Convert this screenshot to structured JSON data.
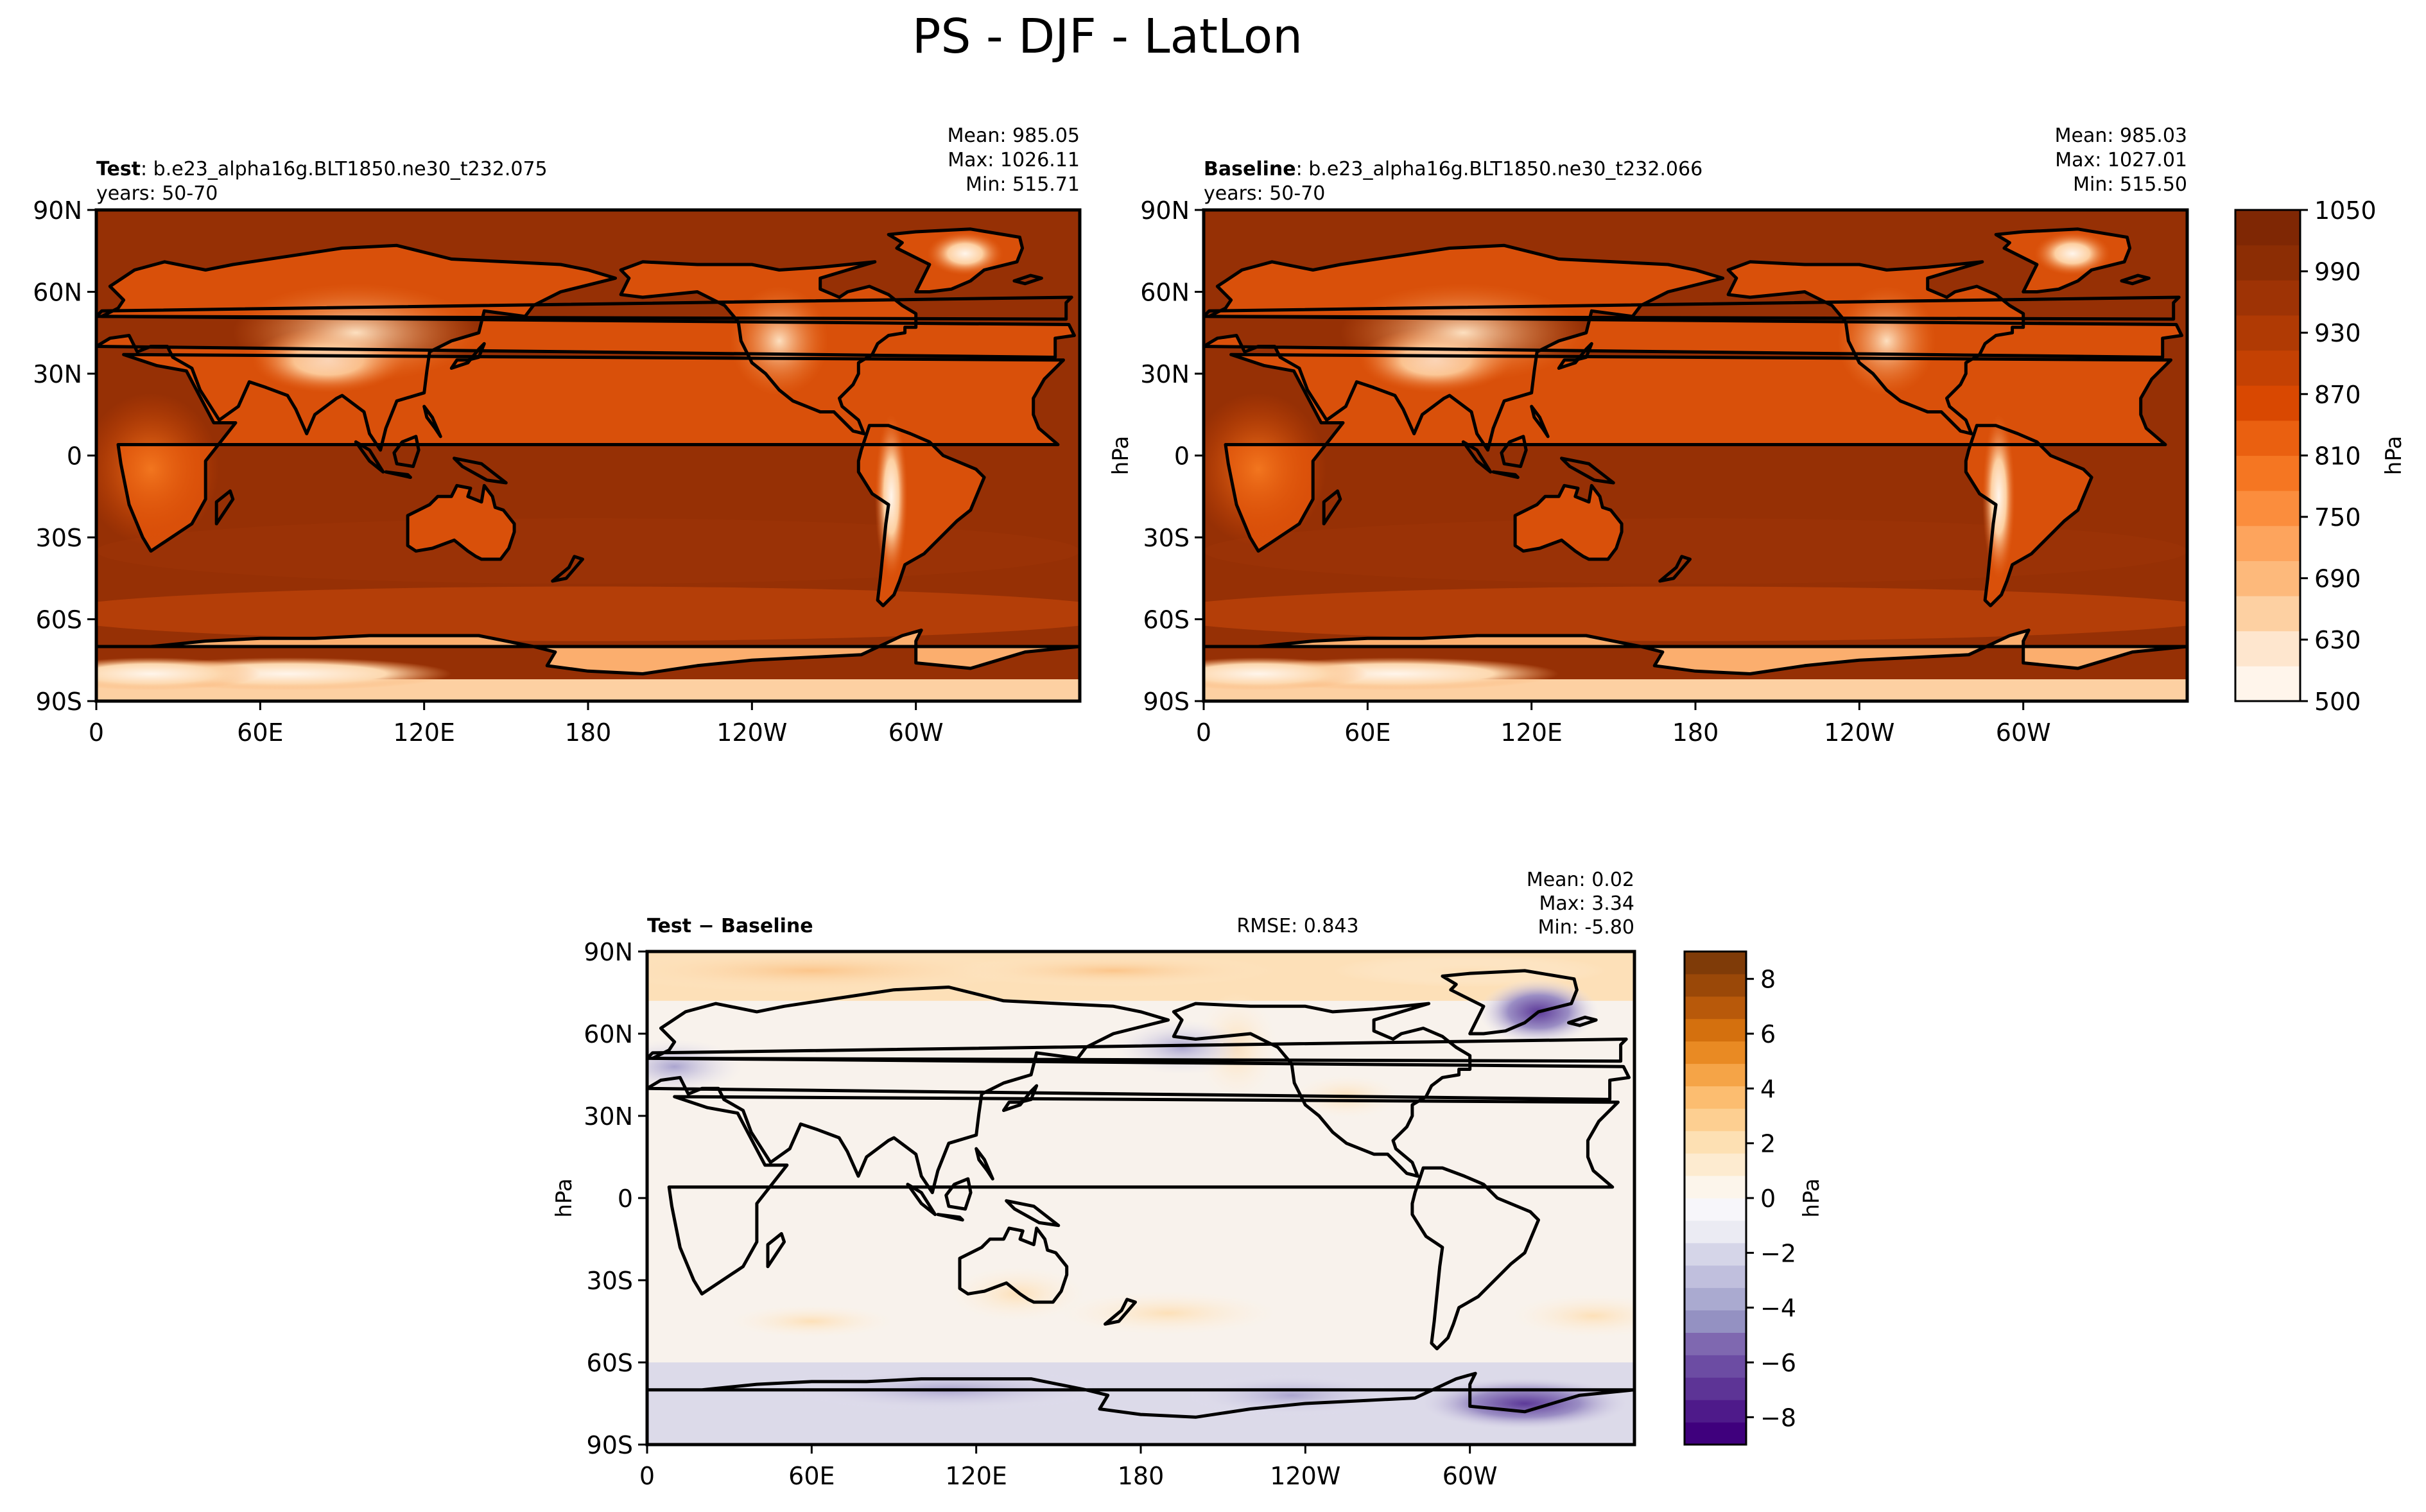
{
  "figure": {
    "title": "PS - DJF - LatLon"
  },
  "panels": [
    {
      "id": "test",
      "label_bold": "Test",
      "label_rest": ": b.e23_alpha16g.BLT1850.ne30_t232.075",
      "years": "years: 50-70",
      "stats": [
        "Mean: 985.05",
        "Max: 1026.11",
        "Min: 515.71"
      ],
      "ylabel": ""
    },
    {
      "id": "baseline",
      "label_bold": "Baseline",
      "label_rest": ": b.e23_alpha16g.BLT1850.ne30_t232.066",
      "years": "years: 50-70",
      "stats": [
        "Mean: 985.03",
        "Max: 1027.01",
        "Min: 515.50"
      ],
      "ylabel": "hPa"
    },
    {
      "id": "diff",
      "label_bold": "Test − Baseline",
      "label_rest": "",
      "rmse": "RMSE: 0.843",
      "stats": [
        "Mean:  0.02",
        "Max:  3.34",
        "Min: -5.80"
      ],
      "ylabel": "hPa"
    }
  ],
  "chart_data": [
    {
      "type": "heatmap",
      "title": "Test: b.e23_alpha16g.BLT1850.ne30_t232.075",
      "variable": "PS",
      "units": "hPa",
      "xticks": [
        "0",
        "60E",
        "120E",
        "180",
        "120W",
        "60W"
      ],
      "yticks": [
        "90N",
        "60N",
        "30N",
        "0",
        "30S",
        "60S",
        "90S"
      ],
      "stats": {
        "mean": 985.05,
        "max": 1026.11,
        "min": 515.71
      }
    },
    {
      "type": "heatmap",
      "title": "Baseline: b.e23_alpha16g.BLT1850.ne30_t232.066",
      "variable": "PS",
      "units": "hPa",
      "xticks": [
        "0",
        "60E",
        "120E",
        "180",
        "120W",
        "60W"
      ],
      "yticks": [
        "90N",
        "60N",
        "30N",
        "0",
        "30S",
        "60S",
        "90S"
      ],
      "stats": {
        "mean": 985.03,
        "max": 1027.01,
        "min": 515.5
      }
    },
    {
      "type": "heatmap",
      "title": "Test − Baseline",
      "variable": "PS difference",
      "units": "hPa",
      "rmse": 0.843,
      "xticks": [
        "0",
        "60E",
        "120E",
        "180",
        "120W",
        "60W"
      ],
      "yticks": [
        "90N",
        "60N",
        "30N",
        "0",
        "30S",
        "60S",
        "90S"
      ],
      "stats": {
        "mean": 0.02,
        "max": 3.34,
        "min": -5.8
      }
    }
  ],
  "colorbars": {
    "main": {
      "label": "hPa",
      "range": [
        500,
        1050
      ],
      "ticks": [
        "1050",
        "990",
        "930",
        "870",
        "810",
        "750",
        "690",
        "630",
        "500"
      ],
      "colors": [
        "#fff5eb",
        "#fee6ce",
        "#fdd0a2",
        "#fdb97b",
        "#fda45d",
        "#fb8d3d",
        "#f57622",
        "#ea6010",
        "#d94801",
        "#c44103",
        "#b03a04",
        "#9e3305",
        "#8c2d04",
        "#7f2704"
      ]
    },
    "diff": {
      "label": "hPa",
      "range": [
        -9,
        9
      ],
      "ticks": [
        "8",
        "6",
        "4",
        "2",
        "0",
        "−2",
        "−4",
        "−6",
        "−8"
      ],
      "colors_neg": [
        "#3f007d",
        "#4e1a8a",
        "#5d3496",
        "#6c4ca3",
        "#7f68b0",
        "#9491c2",
        "#aaaad0",
        "#c0bfdd",
        "#d5d5e8",
        "#ebebf3",
        "#f7f6fa"
      ],
      "colors_pos": [
        "#fcf5eb",
        "#fdebd0",
        "#fde0b3",
        "#fdcf91",
        "#fcbd70",
        "#f5a447",
        "#e98a23",
        "#d4700e",
        "#b8590a",
        "#9a4808",
        "#7f3b08"
      ]
    }
  }
}
